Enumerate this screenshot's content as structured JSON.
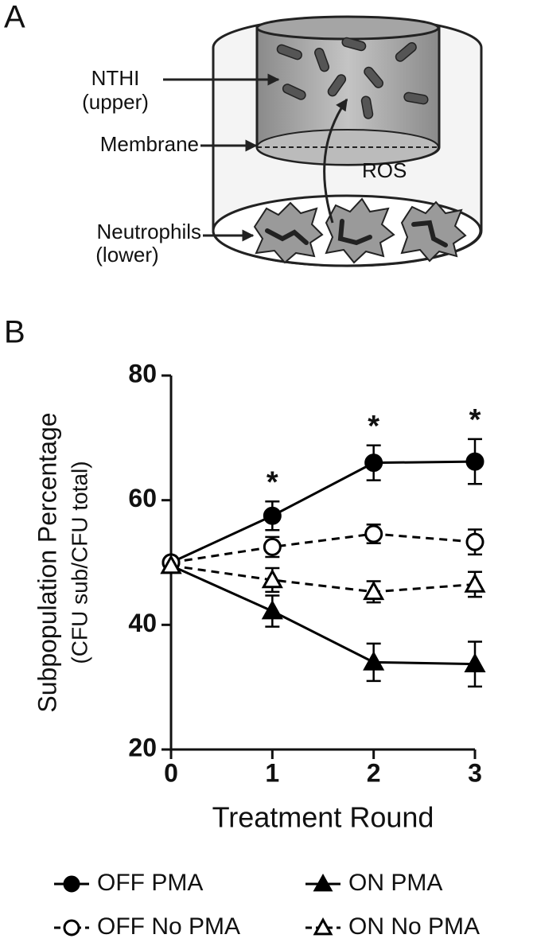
{
  "diagram": {
    "panel_label": "A",
    "nthi": "NTHI",
    "nthi_sub": "(upper)",
    "membrane": "Membrane",
    "ros": "ROS",
    "neutrophils": "Neutrophils",
    "neutrophils_sub": "(lower)"
  },
  "chart_data": {
    "type": "line",
    "panel_label": "B",
    "x_label": "Treatment Round",
    "y_label": [
      "Subpopulation Percentage",
      "(CFU sub/CFU total)"
    ],
    "x": [
      0,
      1,
      2,
      3
    ],
    "xlim": [
      0,
      3
    ],
    "xticks": [
      0,
      1,
      2,
      3
    ],
    "ylim": [
      20,
      80
    ],
    "yticks": [
      20,
      40,
      60,
      80
    ],
    "legend": "bottom",
    "series": [
      {
        "name": "OFF PMA",
        "color": "#000000",
        "marker": "circle",
        "filled": true,
        "dashed": false,
        "values": [
          50,
          57.5,
          66,
          66.2
        ],
        "errors": [
          null,
          2.3,
          2.8,
          3.6
        ]
      },
      {
        "name": "ON PMA",
        "color": "#000000",
        "marker": "triangle",
        "filled": true,
        "dashed": false,
        "values": [
          49.5,
          42.2,
          34,
          33.7
        ],
        "errors": [
          null,
          2.5,
          3,
          3.6
        ]
      },
      {
        "name": "OFF No PMA",
        "color": "#000000",
        "marker": "circle",
        "filled": false,
        "dashed": true,
        "values": [
          50,
          52.5,
          54.6,
          53.3
        ],
        "errors": [
          null,
          1.6,
          1.5,
          2
        ]
      },
      {
        "name": "ON No PMA",
        "color": "#000000",
        "marker": "triangle",
        "filled": false,
        "dashed": true,
        "values": [
          49.5,
          47.2,
          45.3,
          46.5
        ],
        "errors": [
          null,
          1.9,
          1.7,
          2
        ]
      }
    ],
    "annotations": [
      "*",
      "*",
      "*"
    ],
    "annotation_x": [
      1,
      2,
      3
    ],
    "annotation_series": 0
  }
}
